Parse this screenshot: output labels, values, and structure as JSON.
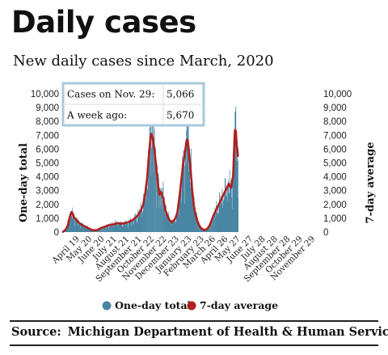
{
  "title": "Daily cases",
  "subtitle": "New daily cases since March, 2020",
  "source_label": "Source:",
  "source_text": "Michigan Department of Health & Human Services",
  "colors": {
    "bars": "#4a86a4",
    "line": "#b0201f",
    "box_border": "#a9c9dd",
    "grid": "#cfcfcf"
  },
  "chart_data": {
    "type": "bar",
    "ylim": [
      0,
      10000
    ],
    "yticks": [
      0,
      1000,
      2000,
      3000,
      4000,
      5000,
      6000,
      7000,
      8000,
      9000,
      "10,000"
    ],
    "ylabel_left": "One-day total",
    "ylabel_right": "7-day average",
    "grid": true,
    "legend_position": "bottom",
    "x_tick_labels": [
      "April 19",
      "May 20",
      "June 20",
      "July 21",
      "August 21",
      "September 21",
      "October 22",
      "November 22",
      "December 23",
      "January 23",
      "February 23",
      "March 26",
      "April 26",
      "May 27",
      "June 27",
      "July 28",
      "August 28",
      "September 28",
      "October 29",
      "November 29"
    ],
    "x_tick_days": [
      36,
      67,
      98,
      129,
      160,
      191,
      222,
      253,
      284,
      315,
      346,
      375,
      406,
      437,
      468,
      499,
      530,
      561,
      592,
      623
    ],
    "start_date": "2020-03-14",
    "end_date": "2020-11-29",
    "series": [
      {
        "name": "One-day total",
        "kind": "bar",
        "points": [
          [
            0,
            20
          ],
          [
            7,
            200
          ],
          [
            12,
            500
          ],
          [
            15,
            900
          ],
          [
            19,
            1300
          ],
          [
            21,
            1450
          ],
          [
            24,
            1300
          ],
          [
            27,
            1100
          ],
          [
            35,
            800
          ],
          [
            45,
            550
          ],
          [
            55,
            400
          ],
          [
            65,
            250
          ],
          [
            75,
            130
          ],
          [
            85,
            150
          ],
          [
            95,
            300
          ],
          [
            105,
            400
          ],
          [
            115,
            500
          ],
          [
            125,
            550
          ],
          [
            135,
            650
          ],
          [
            145,
            600
          ],
          [
            155,
            650
          ],
          [
            165,
            750
          ],
          [
            175,
            900
          ],
          [
            185,
            1150
          ],
          [
            195,
            1600
          ],
          [
            200,
            2000
          ],
          [
            205,
            2800
          ],
          [
            210,
            4000
          ],
          [
            213,
            5200
          ],
          [
            217,
            6500
          ],
          [
            220,
            7100
          ],
          [
            222,
            7000
          ],
          [
            225,
            6600
          ],
          [
            228,
            5900
          ],
          [
            232,
            4800
          ],
          [
            236,
            3600
          ],
          [
            239,
            2900
          ],
          [
            241,
            2700
          ],
          [
            244,
            2900
          ],
          [
            246,
            2800
          ],
          [
            250,
            2400
          ],
          [
            255,
            1600
          ],
          [
            260,
            1200
          ],
          [
            265,
            900
          ],
          [
            270,
            700
          ],
          [
            275,
            800
          ],
          [
            280,
            1000
          ],
          [
            285,
            1400
          ],
          [
            290,
            2500
          ],
          [
            295,
            3800
          ],
          [
            300,
            5000
          ],
          [
            305,
            6000
          ],
          [
            309,
            6700
          ],
          [
            311,
            6600
          ],
          [
            314,
            5800
          ],
          [
            318,
            4500
          ],
          [
            322,
            3000
          ],
          [
            326,
            2000
          ],
          [
            330,
            1300
          ],
          [
            335,
            800
          ],
          [
            340,
            450
          ],
          [
            345,
            250
          ],
          [
            350,
            180
          ],
          [
            355,
            150
          ],
          [
            360,
            250
          ],
          [
            365,
            450
          ],
          [
            370,
            800
          ],
          [
            375,
            1200
          ],
          [
            380,
            1500
          ],
          [
            385,
            1800
          ],
          [
            390,
            2100
          ],
          [
            395,
            2400
          ],
          [
            400,
            2700
          ],
          [
            405,
            3000
          ],
          [
            410,
            3300
          ],
          [
            413,
            3500
          ],
          [
            416,
            3300
          ],
          [
            419,
            3200
          ],
          [
            422,
            3800
          ],
          [
            424,
            4000
          ],
          [
            426,
            5500
          ],
          [
            428,
            7000
          ],
          [
            429,
            7400
          ],
          [
            431,
            7300
          ],
          [
            433,
            6300
          ],
          [
            435,
            5900
          ],
          [
            436,
            5500
          ]
        ],
        "annotations": [
          [
            217,
            8200
          ],
          [
            222,
            9200
          ],
          [
            309,
            8000
          ],
          [
            311,
            8600
          ],
          [
            428,
            8700
          ],
          [
            430,
            9100
          ]
        ]
      },
      {
        "name": "7-day average",
        "kind": "line",
        "points": [
          [
            0,
            20
          ],
          [
            7,
            200
          ],
          [
            12,
            500
          ],
          [
            15,
            900
          ],
          [
            19,
            1300
          ],
          [
            21,
            1450
          ],
          [
            24,
            1300
          ],
          [
            27,
            1100
          ],
          [
            35,
            800
          ],
          [
            45,
            550
          ],
          [
            55,
            400
          ],
          [
            65,
            250
          ],
          [
            75,
            130
          ],
          [
            85,
            150
          ],
          [
            95,
            300
          ],
          [
            105,
            400
          ],
          [
            115,
            500
          ],
          [
            125,
            550
          ],
          [
            135,
            650
          ],
          [
            145,
            600
          ],
          [
            155,
            650
          ],
          [
            165,
            750
          ],
          [
            175,
            900
          ],
          [
            185,
            1150
          ],
          [
            195,
            1600
          ],
          [
            200,
            2000
          ],
          [
            205,
            2800
          ],
          [
            210,
            4000
          ],
          [
            213,
            5200
          ],
          [
            217,
            6500
          ],
          [
            220,
            7100
          ],
          [
            222,
            7000
          ],
          [
            225,
            6600
          ],
          [
            228,
            5900
          ],
          [
            232,
            4800
          ],
          [
            236,
            3600
          ],
          [
            239,
            2900
          ],
          [
            241,
            2700
          ],
          [
            244,
            2900
          ],
          [
            246,
            2800
          ],
          [
            250,
            2400
          ],
          [
            255,
            1600
          ],
          [
            260,
            1200
          ],
          [
            265,
            900
          ],
          [
            270,
            700
          ],
          [
            275,
            800
          ],
          [
            280,
            1000
          ],
          [
            285,
            1400
          ],
          [
            290,
            2500
          ],
          [
            295,
            3800
          ],
          [
            300,
            5000
          ],
          [
            305,
            6000
          ],
          [
            309,
            6700
          ],
          [
            311,
            6600
          ],
          [
            314,
            5800
          ],
          [
            318,
            4500
          ],
          [
            322,
            3000
          ],
          [
            326,
            2000
          ],
          [
            330,
            1300
          ],
          [
            335,
            800
          ],
          [
            340,
            450
          ],
          [
            345,
            250
          ],
          [
            350,
            180
          ],
          [
            355,
            150
          ],
          [
            360,
            250
          ],
          [
            365,
            450
          ],
          [
            370,
            800
          ],
          [
            375,
            1200
          ],
          [
            380,
            1500
          ],
          [
            385,
            1800
          ],
          [
            390,
            2100
          ],
          [
            395,
            2400
          ],
          [
            400,
            2700
          ],
          [
            405,
            3000
          ],
          [
            410,
            3300
          ],
          [
            413,
            3500
          ],
          [
            416,
            3300
          ],
          [
            419,
            3200
          ],
          [
            422,
            3800
          ],
          [
            424,
            4000
          ],
          [
            426,
            5500
          ],
          [
            428,
            7000
          ],
          [
            429,
            7400
          ],
          [
            431,
            7300
          ],
          [
            433,
            6300
          ],
          [
            435,
            5900
          ],
          [
            436,
            5500
          ]
        ]
      }
    ],
    "callout": {
      "rows": [
        {
          "label": "Cases on Nov. 29:",
          "value": "5,066"
        },
        {
          "label": "A week ago:",
          "value": "5,670"
        }
      ]
    },
    "legend": [
      {
        "label": "One-day total",
        "color": "#4a86a4"
      },
      {
        "label": "7-day average",
        "color": "#b0201f"
      }
    ]
  }
}
